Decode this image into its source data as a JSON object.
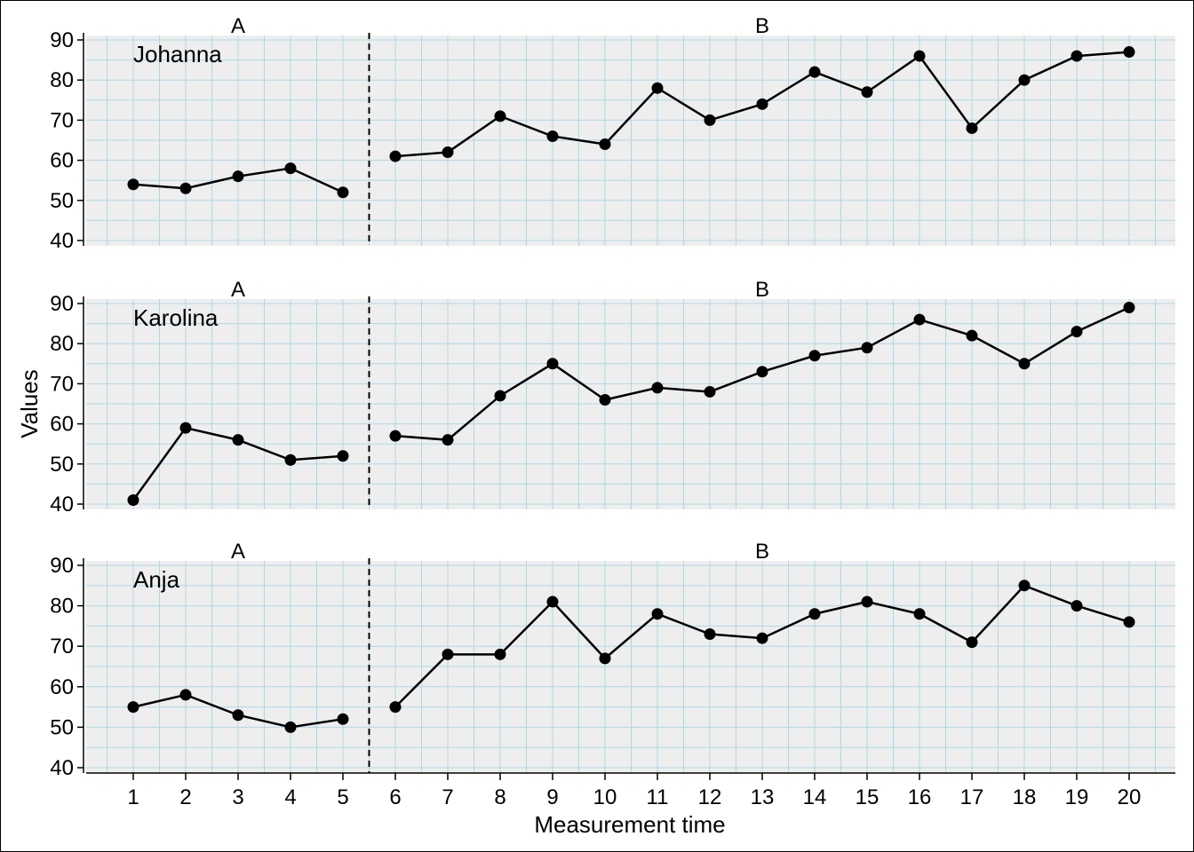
{
  "chart_data": {
    "type": "line",
    "xlabel": "Measurement time",
    "ylabel": "Values",
    "x": [
      1,
      2,
      3,
      4,
      5,
      6,
      7,
      8,
      9,
      10,
      11,
      12,
      13,
      14,
      15,
      16,
      17,
      18,
      19,
      20
    ],
    "x_ticks": [
      "1",
      "2",
      "3",
      "4",
      "5",
      "6",
      "7",
      "8",
      "9",
      "10",
      "11",
      "12",
      "13",
      "14",
      "15",
      "16",
      "17",
      "18",
      "19",
      "20"
    ],
    "ylim": [
      40,
      90
    ],
    "y_ticks": [
      "40",
      "50",
      "60",
      "70",
      "80",
      "90"
    ],
    "grid": true,
    "colors": {
      "panel_background": "#eeeeee",
      "grid_line": "#add8e6",
      "line": "#000000",
      "point": "#000000"
    },
    "phase_change_after": 5,
    "phases": [
      {
        "label": "A",
        "start": 1,
        "end": 5
      },
      {
        "label": "B",
        "start": 6,
        "end": 20
      }
    ],
    "panels": [
      {
        "case": "Johanna",
        "values": [
          54,
          53,
          56,
          58,
          52,
          61,
          62,
          71,
          66,
          64,
          78,
          70,
          74,
          82,
          77,
          86,
          68,
          80,
          86,
          87
        ]
      },
      {
        "case": "Karolina",
        "values": [
          41,
          59,
          56,
          51,
          52,
          57,
          56,
          67,
          75,
          66,
          69,
          68,
          73,
          77,
          79,
          86,
          82,
          75,
          83,
          89
        ]
      },
      {
        "case": "Anja",
        "values": [
          55,
          58,
          53,
          50,
          52,
          55,
          68,
          68,
          81,
          67,
          78,
          73,
          72,
          78,
          81,
          78,
          71,
          85,
          80,
          76
        ]
      }
    ]
  }
}
